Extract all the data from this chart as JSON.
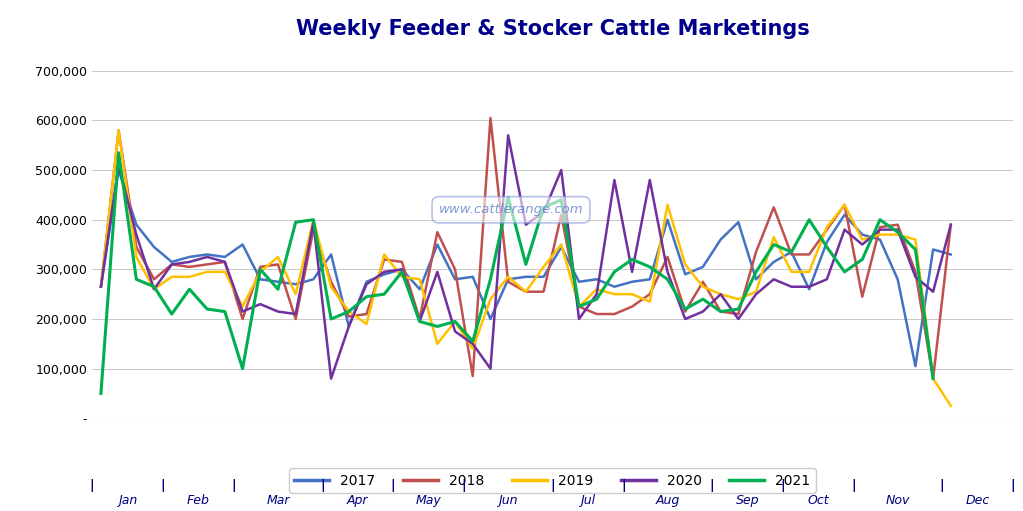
{
  "title": "Weekly Feeder & Stocker Cattle Marketings",
  "title_color": "#00008B",
  "background_color": "#FFFFFF",
  "plot_bg_color": "#FFFFFF",
  "grid_color": "#C8C8C8",
  "ylim": [
    0,
    750000
  ],
  "yticks": [
    0,
    100000,
    200000,
    300000,
    400000,
    500000,
    600000,
    700000
  ],
  "ytick_labels": [
    "-",
    "100,000",
    "200,000",
    "300,000",
    "400,000",
    "500,000",
    "600,000",
    "700,000"
  ],
  "months": [
    "Jan",
    "Feb",
    "Mar",
    "Apr",
    "May",
    "Jun",
    "Jul",
    "Aug",
    "Sep",
    "Oct",
    "Nov",
    "Dec"
  ],
  "weeks_per_month": [
    4,
    4,
    5,
    4,
    4,
    5,
    4,
    5,
    4,
    4,
    5,
    4
  ],
  "series": {
    "2017": {
      "color": "#4472C4",
      "linewidth": 1.8,
      "values": [
        265000,
        500000,
        390000,
        345000,
        315000,
        325000,
        330000,
        325000,
        350000,
        280000,
        275000,
        270000,
        280000,
        330000,
        185000,
        275000,
        290000,
        300000,
        260000,
        350000,
        280000,
        285000,
        200000,
        280000,
        285000,
        285000,
        345000,
        275000,
        280000,
        265000,
        275000,
        280000,
        400000,
        290000,
        305000,
        360000,
        395000,
        280000,
        315000,
        335000,
        260000,
        355000,
        410000,
        370000,
        360000,
        280000,
        105000,
        340000,
        330000
      ]
    },
    "2018": {
      "color": "#C0504D",
      "linewidth": 1.8,
      "values": [
        265000,
        580000,
        345000,
        280000,
        310000,
        305000,
        310000,
        315000,
        200000,
        305000,
        310000,
        200000,
        380000,
        275000,
        205000,
        210000,
        320000,
        315000,
        200000,
        375000,
        300000,
        85000,
        605000,
        275000,
        255000,
        255000,
        410000,
        225000,
        210000,
        210000,
        225000,
        250000,
        325000,
        215000,
        275000,
        215000,
        210000,
        335000,
        425000,
        330000,
        330000,
        380000,
        430000,
        245000,
        385000,
        390000,
        295000,
        80000,
        390000
      ]
    },
    "2019": {
      "color": "#FFC000",
      "linewidth": 1.8,
      "values": [
        265000,
        580000,
        325000,
        260000,
        285000,
        285000,
        295000,
        295000,
        225000,
        295000,
        325000,
        250000,
        400000,
        265000,
        215000,
        190000,
        330000,
        285000,
        280000,
        150000,
        195000,
        140000,
        240000,
        285000,
        255000,
        305000,
        350000,
        225000,
        260000,
        250000,
        250000,
        235000,
        430000,
        310000,
        265000,
        250000,
        240000,
        255000,
        365000,
        295000,
        295000,
        385000,
        430000,
        360000,
        370000,
        370000,
        360000,
        80000,
        25000
      ]
    },
    "2020": {
      "color": "#7030A0",
      "linewidth": 1.8,
      "values": [
        265000,
        510000,
        370000,
        260000,
        310000,
        315000,
        325000,
        315000,
        215000,
        230000,
        215000,
        210000,
        395000,
        80000,
        185000,
        270000,
        295000,
        300000,
        195000,
        295000,
        175000,
        150000,
        100000,
        570000,
        390000,
        415000,
        500000,
        200000,
        250000,
        480000,
        295000,
        480000,
        295000,
        200000,
        215000,
        250000,
        200000,
        250000,
        280000,
        265000,
        265000,
        280000,
        380000,
        350000,
        380000,
        380000,
        285000,
        255000,
        390000
      ]
    },
    "2021": {
      "color": "#00B050",
      "linewidth": 2.2,
      "values": [
        50000,
        535000,
        280000,
        265000,
        210000,
        260000,
        220000,
        215000,
        100000,
        300000,
        260000,
        395000,
        400000,
        200000,
        215000,
        245000,
        250000,
        295000,
        195000,
        185000,
        195000,
        155000,
        280000,
        445000,
        310000,
        425000,
        440000,
        225000,
        240000,
        295000,
        320000,
        305000,
        280000,
        220000,
        240000,
        215000,
        220000,
        295000,
        350000,
        335000,
        400000,
        345000,
        295000,
        320000,
        400000,
        375000,
        340000,
        80000,
        null
      ]
    }
  },
  "legend_years": [
    "2017",
    "2018",
    "2019",
    "2020",
    "2021"
  ],
  "legend_colors": [
    "#4472C4",
    "#C0504D",
    "#FFC000",
    "#7030A0",
    "#00B050"
  ],
  "watermark": "www.cattlerange.com",
  "axis_color": "#000080"
}
